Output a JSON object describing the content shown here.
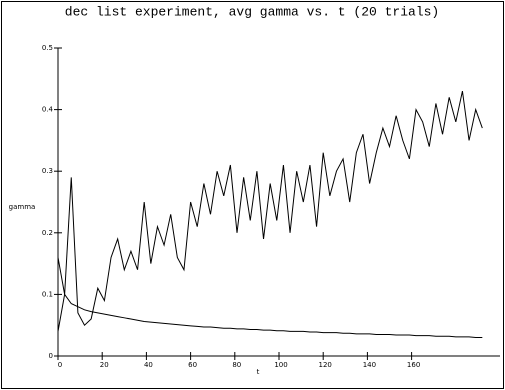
{
  "chart_data": {
    "type": "line",
    "title": "dec list experiment, avg gamma vs. t (20 trials)",
    "xlabel": "t",
    "ylabel": "gamma",
    "x": [
      0,
      3,
      6,
      9,
      12,
      15,
      18,
      21,
      24,
      27,
      30,
      33,
      36,
      39,
      42,
      45,
      48,
      51,
      54,
      57,
      60,
      63,
      66,
      69,
      72,
      75,
      78,
      81,
      84,
      87,
      90,
      93,
      96,
      99,
      102,
      105,
      108,
      111,
      114,
      117,
      120,
      123,
      126,
      129,
      132,
      135,
      138,
      141,
      144,
      147,
      150,
      153,
      156,
      159,
      162,
      165,
      168,
      171,
      174,
      177,
      180,
      183,
      186,
      189,
      192
    ],
    "series": [
      {
        "color": "#000000",
        "values": [
          0.04,
          0.1,
          0.29,
          0.07,
          0.05,
          0.06,
          0.11,
          0.09,
          0.16,
          0.19,
          0.14,
          0.17,
          0.14,
          0.25,
          0.15,
          0.21,
          0.18,
          0.23,
          0.16,
          0.14,
          0.25,
          0.21,
          0.28,
          0.23,
          0.3,
          0.26,
          0.31,
          0.2,
          0.29,
          0.22,
          0.3,
          0.19,
          0.28,
          0.22,
          0.31,
          0.2,
          0.3,
          0.25,
          0.31,
          0.21,
          0.33,
          0.26,
          0.3,
          0.32,
          0.25,
          0.33,
          0.36,
          0.28,
          0.33,
          0.37,
          0.34,
          0.39,
          0.35,
          0.32,
          0.4,
          0.38,
          0.34,
          0.41,
          0.36,
          0.42,
          0.38,
          0.43,
          0.35,
          0.4,
          0.37
        ]
      },
      {
        "color": "#000000",
        "values": [
          0.16,
          0.1,
          0.085,
          0.08,
          0.075,
          0.072,
          0.07,
          0.068,
          0.066,
          0.064,
          0.062,
          0.06,
          0.058,
          0.056,
          0.055,
          0.054,
          0.053,
          0.052,
          0.051,
          0.05,
          0.049,
          0.048,
          0.047,
          0.047,
          0.046,
          0.045,
          0.045,
          0.044,
          0.044,
          0.043,
          0.043,
          0.042,
          0.042,
          0.041,
          0.041,
          0.04,
          0.04,
          0.04,
          0.039,
          0.039,
          0.038,
          0.038,
          0.038,
          0.037,
          0.037,
          0.036,
          0.036,
          0.036,
          0.035,
          0.035,
          0.035,
          0.034,
          0.034,
          0.034,
          0.033,
          0.033,
          0.033,
          0.032,
          0.032,
          0.032,
          0.031,
          0.031,
          0.031,
          0.03,
          0.03
        ]
      }
    ],
    "xlim": [
      0,
      200
    ],
    "xticks": [
      0,
      20,
      40,
      60,
      80,
      100,
      120,
      140,
      160
    ],
    "ylim": [
      0,
      0.5
    ],
    "yticks": [
      0,
      0.1,
      0.2,
      0.3,
      0.4,
      0.5
    ]
  }
}
